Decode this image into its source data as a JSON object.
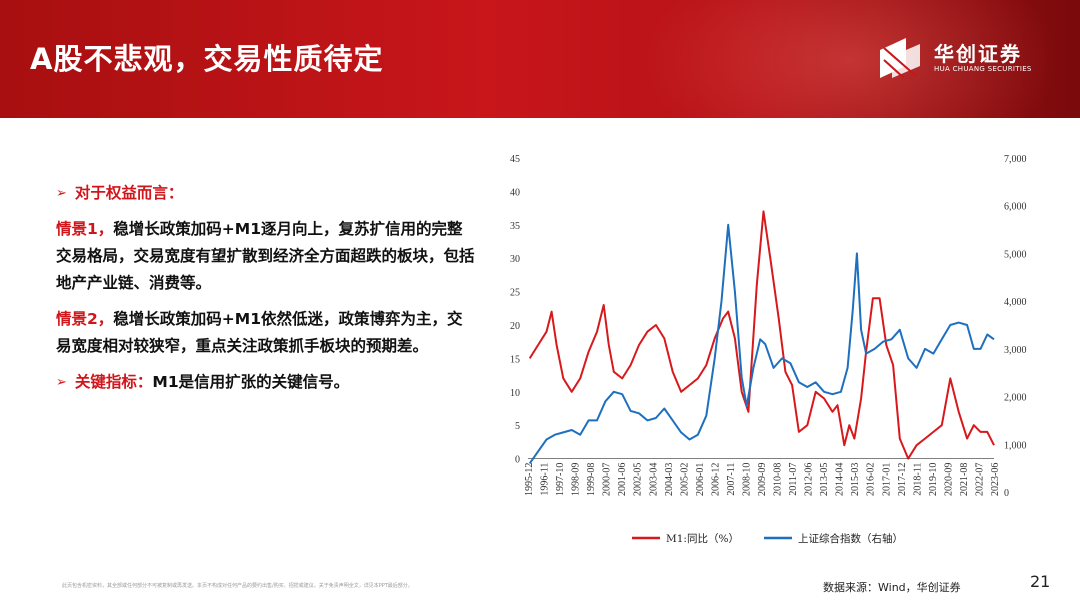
{
  "header": {
    "title": "A股不悲观，交易性质待定",
    "logo_cn": "华创证券",
    "logo_en": "HUA CHUANG SECURITIES"
  },
  "content": {
    "heading_arrow": "➢",
    "heading": "对于权益而言：",
    "scenario1_label": "情景1，",
    "scenario1_text": "稳增长政策加码+M1逐月向上，复苏扩信用的完整交易格局，交易宽度有望扩散到经济全方面超跌的板块，包括地产产业链、消费等。",
    "scenario2_label": "情景2，",
    "scenario2_text": "稳增长政策加码+M1依然低迷，政策博弈为主，交易宽度相对较狭窄，重点关注政策抓手板块的预期差。",
    "key_arrow": "➢",
    "key_label": "关键指标：",
    "key_text": "M1是信用扩张的关键信号。"
  },
  "footer": {
    "disclaimer": "此页包含机密资料，其全部或任何部分不可被复制或再发送。本页不构成对任何产品的要约出售/购买、招揽或建议。关于免责声明全文，详见本PPT最后部分。",
    "source": "数据来源：Wind，华创证券",
    "page_number": "21"
  },
  "chart_data": {
    "type": "line",
    "colors": {
      "m1": "#d7191c",
      "index": "#1f6fbf"
    },
    "x_tick_labels": [
      "1995-12",
      "1996-11",
      "1997-10",
      "1998-09",
      "1999-08",
      "2000-07",
      "2001-06",
      "2002-05",
      "2003-04",
      "2004-03",
      "2005-02",
      "2006-01",
      "2006-12",
      "2007-11",
      "2008-10",
      "2009-09",
      "2010-08",
      "2011-07",
      "2012-06",
      "2013-05",
      "2014-04",
      "2015-03",
      "2016-02",
      "2017-01",
      "2017-12",
      "2018-11",
      "2019-10",
      "2020-09",
      "2021-08",
      "2022-07",
      "2023-06"
    ],
    "y_left": {
      "ticks": [
        "0",
        "5",
        "10",
        "15",
        "20",
        "25",
        "30",
        "35",
        "40",
        "45"
      ],
      "ylim": [
        -5,
        45
      ]
    },
    "y_right": {
      "ticks": [
        "0",
        "1,000",
        "2,000",
        "3,000",
        "4,000",
        "5,000",
        "6,000",
        "7,000"
      ],
      "ylim": [
        0,
        7000
      ]
    },
    "series": [
      {
        "name": "M1:同比（%）",
        "axis": "left",
        "x": [
          1996.0,
          1996.5,
          1997.0,
          1997.3,
          1997.6,
          1998.0,
          1998.5,
          1999.0,
          1999.5,
          2000.0,
          2000.4,
          2000.7,
          2001.0,
          2001.5,
          2002.0,
          2002.5,
          2003.0,
          2003.5,
          2004.0,
          2004.5,
          2005.0,
          2005.5,
          2006.0,
          2006.5,
          2007.0,
          2007.5,
          2007.8,
          2008.2,
          2008.6,
          2009.0,
          2009.5,
          2009.9,
          2010.3,
          2010.8,
          2011.2,
          2011.6,
          2012.0,
          2012.5,
          2013.0,
          2013.5,
          2014.0,
          2014.3,
          2014.7,
          2015.0,
          2015.3,
          2015.7,
          2016.0,
          2016.4,
          2016.8,
          2017.2,
          2017.6,
          2018.0,
          2018.5,
          2019.0,
          2019.5,
          2020.0,
          2020.5,
          2021.0,
          2021.5,
          2022.0,
          2022.4,
          2022.8,
          2023.2,
          2023.6
        ],
        "values": [
          15,
          17,
          19,
          22,
          17,
          12,
          10,
          12,
          16,
          19,
          23,
          17,
          13,
          12,
          14,
          17,
          19,
          20,
          18,
          13,
          10,
          11,
          12,
          14,
          18,
          21,
          22,
          18,
          10,
          7,
          26,
          37,
          30,
          21,
          13,
          11,
          4,
          5,
          10,
          9,
          7,
          8,
          2,
          5,
          3,
          9,
          16,
          24,
          24,
          17,
          14,
          3,
          0,
          2,
          3,
          4,
          5,
          12,
          7,
          3,
          5,
          4,
          4,
          2
        ]
      },
      {
        "name": "上证综合指数（右轴）",
        "axis": "right",
        "x": [
          1996.0,
          1996.5,
          1997.0,
          1997.5,
          1998.0,
          1998.5,
          1999.0,
          1999.5,
          2000.0,
          2000.5,
          2001.0,
          2001.5,
          2002.0,
          2002.5,
          2003.0,
          2003.5,
          2004.0,
          2004.5,
          2005.0,
          2005.5,
          2006.0,
          2006.5,
          2007.0,
          2007.4,
          2007.8,
          2008.2,
          2008.6,
          2008.9,
          2009.3,
          2009.7,
          2010.0,
          2010.5,
          2011.0,
          2011.5,
          2012.0,
          2012.5,
          2013.0,
          2013.5,
          2014.0,
          2014.5,
          2014.9,
          2015.2,
          2015.45,
          2015.7,
          2016.0,
          2016.5,
          2017.0,
          2017.5,
          2018.0,
          2018.5,
          2019.0,
          2019.5,
          2020.0,
          2020.5,
          2021.0,
          2021.5,
          2022.0,
          2022.4,
          2022.8,
          2023.2,
          2023.6
        ],
        "values": [
          600,
          850,
          1100,
          1200,
          1250,
          1300,
          1200,
          1500,
          1500,
          1900,
          2100,
          2050,
          1700,
          1650,
          1500,
          1550,
          1750,
          1500,
          1250,
          1100,
          1200,
          1600,
          2800,
          4000,
          5600,
          4200,
          2400,
          1800,
          2600,
          3200,
          3100,
          2600,
          2800,
          2700,
          2300,
          2200,
          2300,
          2100,
          2050,
          2100,
          2600,
          3800,
          5000,
          3400,
          2900,
          3000,
          3150,
          3200,
          3400,
          2800,
          2600,
          3000,
          2900,
          3200,
          3500,
          3550,
          3500,
          3000,
          3000,
          3300,
          3200
        ]
      }
    ]
  }
}
